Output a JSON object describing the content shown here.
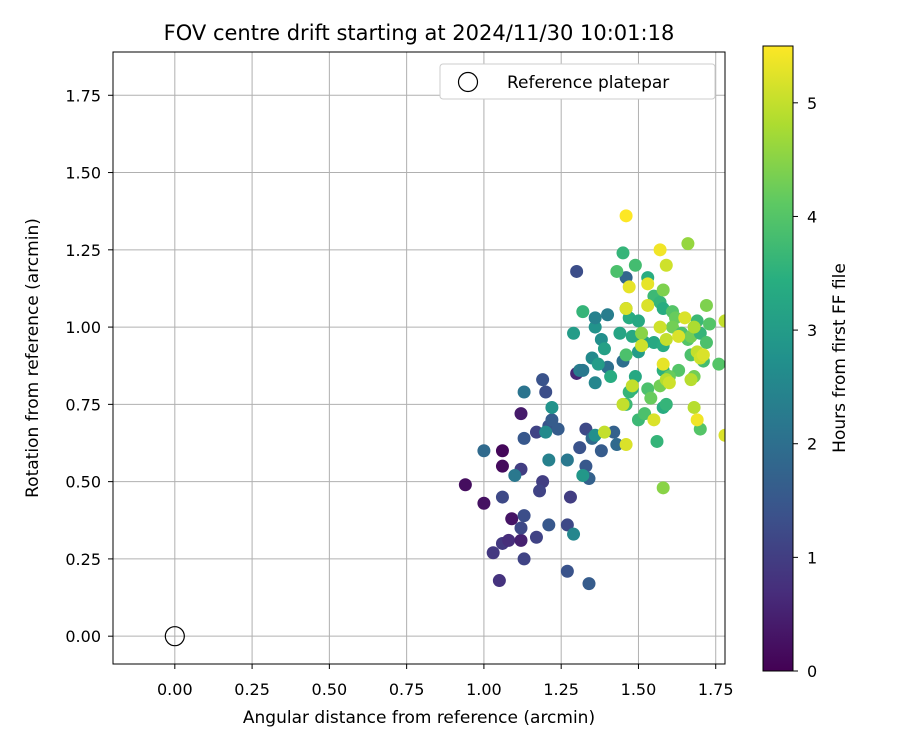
{
  "chart_data": {
    "type": "scatter",
    "title": "FOV centre drift starting at 2024/11/30 10:01:18",
    "xlabel": "Angular distance from reference (arcmin)",
    "ylabel": "Rotation from reference (arcmin)",
    "xlim": [
      -0.2,
      1.78
    ],
    "ylim": [
      -0.09,
      1.89
    ],
    "xticks": [
      "0.00",
      "0.25",
      "0.50",
      "0.75",
      "1.00",
      "1.25",
      "1.50",
      "1.75"
    ],
    "yticks": [
      "0.00",
      "0.25",
      "0.50",
      "0.75",
      "1.00",
      "1.25",
      "1.50",
      "1.75"
    ],
    "grid": true,
    "legend": {
      "placement": "top-right",
      "entries": [
        "Reference platepar"
      ]
    },
    "reference_point": {
      "x": 0.0,
      "y": 0.0,
      "label": "Reference platepar"
    },
    "colorbar": {
      "label": "Hours from first FF file",
      "range": [
        0,
        5.5
      ],
      "ticks": [
        "0",
        "1",
        "2",
        "3",
        "4",
        "5"
      ],
      "colormap": "viridis"
    },
    "points": [
      [
        0.94,
        0.49,
        0.2
      ],
      [
        1.0,
        0.43,
        0.25
      ],
      [
        1.06,
        0.6,
        0.1
      ],
      [
        1.06,
        0.55,
        0.15
      ],
      [
        1.12,
        0.72,
        0.4
      ],
      [
        1.09,
        0.38,
        0.3
      ],
      [
        1.05,
        0.18,
        0.8
      ],
      [
        1.03,
        0.27,
        0.9
      ],
      [
        1.06,
        0.3,
        0.9
      ],
      [
        1.08,
        0.31,
        0.7
      ],
      [
        1.12,
        0.31,
        0.5
      ],
      [
        1.13,
        0.25,
        1.1
      ],
      [
        1.12,
        0.35,
        1.2
      ],
      [
        1.13,
        0.39,
        1.3
      ],
      [
        1.06,
        0.45,
        1.2
      ],
      [
        1.12,
        0.54,
        1.0
      ],
      [
        1.17,
        0.32,
        1.1
      ],
      [
        1.13,
        0.64,
        1.5
      ],
      [
        1.17,
        0.66,
        1.1
      ],
      [
        1.19,
        0.5,
        1.0
      ],
      [
        1.18,
        0.47,
        1.1
      ],
      [
        1.2,
        0.79,
        1.3
      ],
      [
        1.19,
        0.83,
        1.4
      ],
      [
        1.21,
        0.68,
        1.4
      ],
      [
        1.22,
        0.7,
        1.6
      ],
      [
        1.24,
        0.67,
        1.6
      ],
      [
        1.0,
        0.6,
        1.9
      ],
      [
        1.1,
        0.52,
        2.2
      ],
      [
        1.13,
        0.79,
        2.1
      ],
      [
        1.21,
        0.57,
        2.4
      ],
      [
        1.2,
        0.66,
        2.6
      ],
      [
        1.22,
        0.74,
        2.8
      ],
      [
        1.21,
        0.36,
        1.5
      ],
      [
        1.27,
        0.36,
        1.2
      ],
      [
        1.27,
        0.21,
        1.4
      ],
      [
        1.28,
        0.45,
        1.0
      ],
      [
        1.3,
        0.85,
        0.6
      ],
      [
        1.3,
        1.18,
        1.3
      ],
      [
        1.33,
        0.67,
        1.2
      ],
      [
        1.31,
        0.61,
        1.4
      ],
      [
        1.33,
        0.55,
        1.5
      ],
      [
        1.34,
        0.51,
        1.7
      ],
      [
        1.34,
        0.17,
        1.6
      ],
      [
        1.27,
        0.57,
        2.2
      ],
      [
        1.29,
        0.33,
        2.5
      ],
      [
        1.32,
        0.52,
        2.9
      ],
      [
        1.31,
        0.86,
        2.3
      ],
      [
        1.32,
        0.86,
        2.2
      ],
      [
        1.36,
        0.82,
        2.5
      ],
      [
        1.35,
        0.64,
        1.9
      ],
      [
        1.36,
        0.65,
        2.7
      ],
      [
        1.38,
        0.6,
        1.6
      ],
      [
        1.4,
        0.87,
        2.0
      ],
      [
        1.42,
        0.66,
        1.7
      ],
      [
        1.43,
        0.62,
        1.9
      ],
      [
        1.45,
        0.89,
        2.0
      ],
      [
        1.46,
        1.16,
        1.8
      ],
      [
        1.35,
        0.9,
        2.6
      ],
      [
        1.36,
        1.0,
        2.8
      ],
      [
        1.38,
        0.96,
        2.7
      ],
      [
        1.37,
        0.88,
        3.0
      ],
      [
        1.39,
        0.93,
        3.1
      ],
      [
        1.36,
        1.03,
        2.4
      ],
      [
        1.4,
        1.04,
        2.3
      ],
      [
        1.29,
        0.98,
        3.0
      ],
      [
        1.32,
        1.05,
        3.6
      ],
      [
        1.41,
        0.84,
        3.4
      ],
      [
        1.44,
        0.98,
        3.2
      ],
      [
        1.46,
        1.06,
        3.0
      ],
      [
        1.47,
        1.03,
        3.4
      ],
      [
        1.45,
        1.24,
        3.6
      ],
      [
        1.43,
        1.18,
        3.9
      ],
      [
        1.49,
        1.2,
        3.8
      ],
      [
        1.5,
        1.02,
        3.3
      ],
      [
        1.52,
        0.95,
        3.6
      ],
      [
        1.49,
        0.84,
        3.3
      ],
      [
        1.5,
        0.92,
        3.0
      ],
      [
        1.51,
        0.96,
        3.2
      ],
      [
        1.48,
        0.8,
        3.5
      ],
      [
        1.47,
        0.79,
        3.6
      ],
      [
        1.46,
        0.75,
        3.7
      ],
      [
        1.46,
        0.91,
        3.9
      ],
      [
        1.48,
        0.97,
        3.3
      ],
      [
        1.5,
        0.7,
        3.7
      ],
      [
        1.52,
        0.72,
        3.9
      ],
      [
        1.53,
        0.8,
        3.9
      ],
      [
        1.54,
        0.77,
        4.2
      ],
      [
        1.53,
        1.16,
        3.4
      ],
      [
        1.55,
        1.1,
        3.7
      ],
      [
        1.57,
        1.08,
        3.6
      ],
      [
        1.58,
        1.06,
        3.4
      ],
      [
        1.55,
        0.95,
        3.3
      ],
      [
        1.58,
        0.94,
        3.4
      ],
      [
        1.58,
        0.86,
        3.5
      ],
      [
        1.56,
        0.63,
        3.6
      ],
      [
        1.58,
        0.74,
        3.4
      ],
      [
        1.59,
        0.75,
        3.6
      ],
      [
        1.61,
        1.05,
        4.0
      ],
      [
        1.62,
        1.03,
        4.2
      ],
      [
        1.61,
        1.0,
        4.3
      ],
      [
        1.64,
        0.98,
        3.9
      ],
      [
        1.66,
        0.96,
        4.0
      ],
      [
        1.67,
        0.97,
        4.3
      ],
      [
        1.69,
        1.02,
        3.7
      ],
      [
        1.7,
        0.98,
        3.6
      ],
      [
        1.72,
        0.95,
        3.9
      ],
      [
        1.72,
        1.07,
        4.4
      ],
      [
        1.73,
        1.01,
        4.0
      ],
      [
        1.71,
        0.89,
        3.8
      ],
      [
        1.7,
        0.67,
        4.0
      ],
      [
        1.67,
        0.91,
        3.9
      ],
      [
        1.68,
        0.84,
        4.3
      ],
      [
        1.63,
        0.86,
        4.0
      ],
      [
        1.6,
        0.84,
        4.2
      ],
      [
        1.57,
        0.81,
        4.3
      ],
      [
        1.58,
        0.48,
        4.5
      ],
      [
        1.66,
        1.27,
        4.6
      ],
      [
        1.76,
        0.88,
        4.0
      ],
      [
        1.58,
        1.12,
        4.4
      ],
      [
        1.51,
        0.98,
        4.5
      ],
      [
        1.46,
        1.36,
        5.5
      ],
      [
        1.47,
        1.13,
        5.3
      ],
      [
        1.53,
        1.14,
        5.3
      ],
      [
        1.53,
        1.07,
        5.2
      ],
      [
        1.51,
        0.94,
        5.1
      ],
      [
        1.46,
        1.06,
        5.2
      ],
      [
        1.39,
        0.66,
        5.0
      ],
      [
        1.46,
        0.62,
        5.2
      ],
      [
        1.45,
        0.75,
        5.0
      ],
      [
        1.48,
        0.81,
        5.0
      ],
      [
        1.55,
        0.7,
        5.2
      ],
      [
        1.57,
        1.25,
        5.4
      ],
      [
        1.59,
        1.2,
        5.1
      ],
      [
        1.59,
        0.96,
        5.0
      ],
      [
        1.57,
        1.0,
        5.1
      ],
      [
        1.58,
        0.88,
        5.3
      ],
      [
        1.59,
        0.83,
        4.9
      ],
      [
        1.6,
        0.82,
        5.1
      ],
      [
        1.63,
        0.97,
        5.2
      ],
      [
        1.65,
        1.03,
        5.2
      ],
      [
        1.68,
        1.0,
        4.8
      ],
      [
        1.69,
        0.92,
        5.0
      ],
      [
        1.7,
        0.9,
        5.1
      ],
      [
        1.71,
        0.91,
        5.2
      ],
      [
        1.68,
        0.74,
        4.9
      ],
      [
        1.69,
        0.7,
        5.4
      ],
      [
        1.67,
        0.83,
        4.9
      ],
      [
        1.78,
        1.02,
        5.0
      ],
      [
        1.78,
        0.65,
        5.2
      ]
    ]
  }
}
